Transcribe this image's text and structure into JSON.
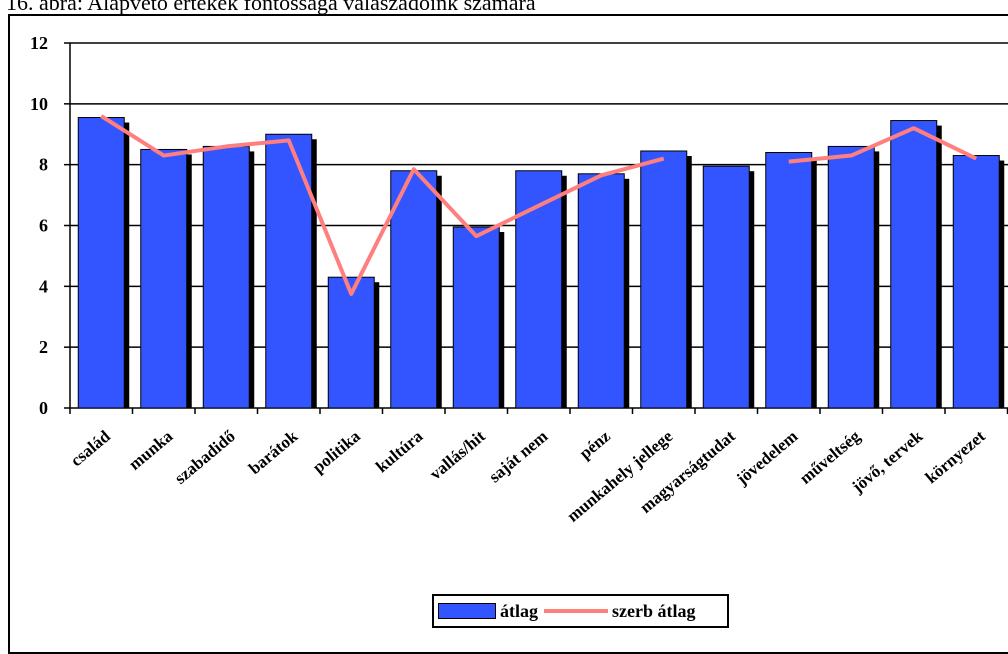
{
  "caption": "16. ábra: Alapvető értékek fontossága válaszadóink számára",
  "chart_data": {
    "type": "bar",
    "categories": [
      "család",
      "munka",
      "szabadidő",
      "barátok",
      "politika",
      "kultúra",
      "vallás/hit",
      "saját nem",
      "pénz",
      "munkahely jellege",
      "magyarságtudat",
      "jövedelem",
      "műveltség",
      "jövő, tervek",
      "környezet"
    ],
    "series": [
      {
        "name": "átlag",
        "type": "bar",
        "color": "#3355ff",
        "values": [
          9.55,
          8.5,
          8.6,
          9.0,
          4.3,
          7.8,
          5.95,
          7.8,
          7.7,
          8.45,
          7.95,
          8.4,
          8.6,
          9.45,
          8.3
        ]
      },
      {
        "name": "szerb átlag",
        "type": "line",
        "color": "#ff7f7f",
        "values": [
          9.6,
          8.3,
          8.6,
          8.8,
          3.75,
          7.85,
          5.65,
          6.65,
          7.65,
          8.2,
          null,
          8.1,
          8.3,
          9.2,
          8.2
        ]
      }
    ],
    "yticks": [
      "0",
      "2",
      "4",
      "6",
      "8",
      "10",
      "12"
    ],
    "ylim": [
      0,
      12
    ],
    "grid": true,
    "legend": "bottom-center"
  }
}
